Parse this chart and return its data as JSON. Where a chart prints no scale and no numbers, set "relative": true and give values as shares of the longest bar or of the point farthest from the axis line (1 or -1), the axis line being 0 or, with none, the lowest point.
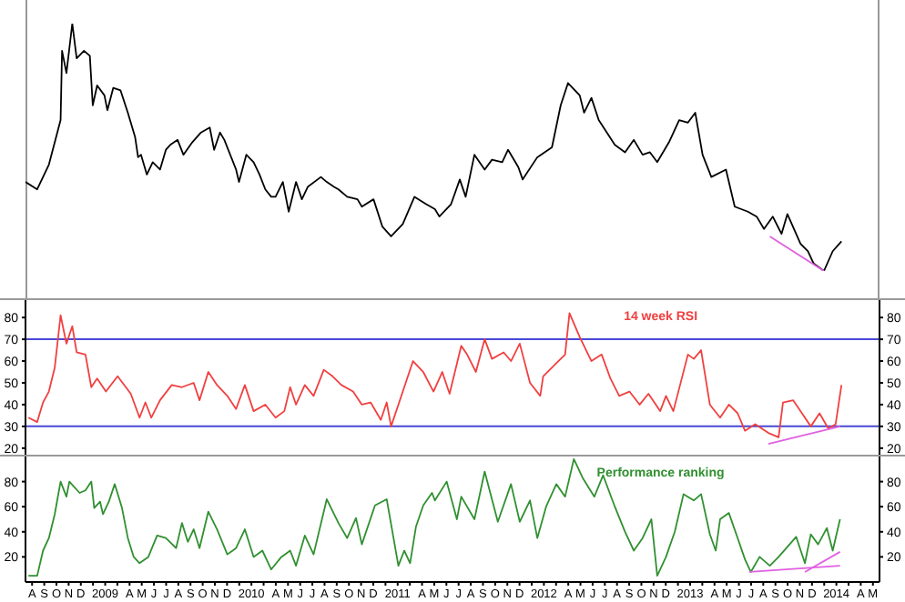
{
  "chart_data": [
    {
      "type": "line",
      "relative": true,
      "tick_labels": false,
      "xlim": [
        2008.58,
        2014.42
      ],
      "series": [
        {
          "color": "#000000",
          "x": [
            2008.58,
            2008.66,
            2008.74,
            2008.82,
            2008.83,
            2008.86,
            2008.9,
            2008.93,
            2008.98,
            2009.02,
            2009.04,
            2009.07,
            2009.12,
            2009.14,
            2009.18,
            2009.23,
            2009.28,
            2009.33,
            2009.35,
            2009.37,
            2009.41,
            2009.45,
            2009.5,
            2009.54,
            2009.57,
            2009.62,
            2009.66,
            2009.72,
            2009.78,
            2009.84,
            2009.87,
            2009.91,
            2009.94,
            2010.02,
            2010.04,
            2010.09,
            2010.14,
            2010.18,
            2010.22,
            2010.26,
            2010.29,
            2010.34,
            2010.38,
            2010.43,
            2010.47,
            2010.51,
            2010.6,
            2010.64,
            2010.69,
            2010.72,
            2010.78,
            2010.85,
            2010.88,
            2010.96,
            2011.02,
            2011.08,
            2011.16,
            2011.24,
            2011.32,
            2011.38,
            2011.41,
            2011.49,
            2011.55,
            2011.59,
            2011.65,
            2011.72,
            2011.77,
            2011.84,
            2011.88,
            2011.95,
            2011.98,
            2012.08,
            2012.18,
            2012.24,
            2012.29,
            2012.37,
            2012.4,
            2012.45,
            2012.5,
            2012.61,
            2012.68,
            2012.74,
            2012.8,
            2012.85,
            2012.9,
            2012.98,
            2013.05,
            2013.11,
            2013.16,
            2013.21,
            2013.27,
            2013.37,
            2013.43,
            2013.52,
            2013.58,
            2013.63,
            2013.69,
            2013.75,
            2013.79,
            2013.88,
            2013.93,
            2013.97,
            2014.04,
            2014.1,
            2014.16
          ],
          "values": [
            0.36,
            0.33,
            0.43,
            0.61,
            0.89,
            0.8,
            1,
            0.86,
            0.89,
            0.87,
            0.67,
            0.75,
            0.71,
            0.65,
            0.74,
            0.73,
            0.64,
            0.54,
            0.46,
            0.47,
            0.39,
            0.44,
            0.41,
            0.49,
            0.51,
            0.53,
            0.47,
            0.52,
            0.56,
            0.58,
            0.49,
            0.56,
            0.53,
            0.41,
            0.36,
            0.47,
            0.44,
            0.39,
            0.33,
            0.3,
            0.3,
            0.36,
            0.24,
            0.36,
            0.29,
            0.34,
            0.38,
            0.36,
            0.34,
            0.33,
            0.3,
            0.29,
            0.26,
            0.29,
            0.18,
            0.14,
            0.19,
            0.3,
            0.27,
            0.25,
            0.22,
            0.27,
            0.37,
            0.3,
            0.47,
            0.41,
            0.45,
            0.44,
            0.49,
            0.42,
            0.37,
            0.46,
            0.5,
            0.67,
            0.76,
            0.71,
            0.64,
            0.7,
            0.61,
            0.51,
            0.48,
            0.53,
            0.47,
            0.48,
            0.44,
            0.52,
            0.61,
            0.6,
            0.64,
            0.47,
            0.38,
            0.41,
            0.26,
            0.24,
            0.22,
            0.17,
            0.22,
            0.15,
            0.23,
            0.11,
            0.08,
            0.03,
            0,
            0.08,
            0.12
          ]
        },
        {
          "type": "line",
          "color": "#e060e0",
          "x": [
            2013.67,
            2014.04
          ],
          "values": [
            0.14,
            0
          ]
        }
      ]
    },
    {
      "type": "line",
      "tick_labels": "y",
      "xlim": [
        2008.58,
        2014.42
      ],
      "ylim": [
        17,
        88
      ],
      "yticks": [
        20,
        30,
        40,
        50,
        60,
        70,
        80
      ],
      "y2lim": [
        17,
        88
      ],
      "y2ticks": [
        20,
        30,
        40,
        50,
        60,
        70,
        80
      ],
      "annotations": [
        "14 week RSI"
      ],
      "ref_lines": [
        {
          "axis": "y",
          "value": 70,
          "color": "#4848d8"
        },
        {
          "axis": "y",
          "value": 30,
          "color": "#4848d8"
        }
      ],
      "series": [
        {
          "color": "#f04040",
          "x": [
            2008.6,
            2008.66,
            2008.7,
            2008.74,
            2008.78,
            2008.82,
            2008.86,
            2008.9,
            2008.93,
            2008.99,
            2009.03,
            2009.07,
            2009.13,
            2009.21,
            2009.3,
            2009.36,
            2009.4,
            2009.44,
            2009.5,
            2009.58,
            2009.65,
            2009.73,
            2009.77,
            2009.83,
            2009.89,
            2009.96,
            2010.02,
            2010.08,
            2010.14,
            2010.22,
            2010.29,
            2010.35,
            2010.39,
            2010.43,
            2010.49,
            2010.55,
            2010.62,
            2010.68,
            2010.74,
            2010.82,
            2010.88,
            2010.94,
            2011.01,
            2011.05,
            2011.08,
            2011.13,
            2011.23,
            2011.3,
            2011.37,
            2011.43,
            2011.48,
            2011.56,
            2011.6,
            2011.66,
            2011.72,
            2011.77,
            2011.85,
            2011.9,
            2011.96,
            2012.03,
            2012.1,
            2012.12,
            2012.21,
            2012.27,
            2012.3,
            2012.37,
            2012.45,
            2012.52,
            2012.58,
            2012.64,
            2012.71,
            2012.78,
            2012.84,
            2012.92,
            2012.96,
            2013.01,
            2013.11,
            2013.15,
            2013.2,
            2013.26,
            2013.33,
            2013.39,
            2013.45,
            2013.5,
            2013.57,
            2013.66,
            2013.73,
            2013.76,
            2013.83,
            2013.89,
            2013.95,
            2014.01,
            2014.07,
            2014.12,
            2014.16
          ],
          "values": [
            34,
            32,
            41,
            46,
            57,
            81,
            68,
            76,
            64,
            63,
            48,
            52,
            46,
            53,
            45,
            34,
            41,
            34,
            42,
            49,
            48,
            50,
            42,
            55,
            49,
            44,
            38,
            49,
            37,
            40,
            34,
            37,
            48,
            40,
            49,
            44,
            56,
            53,
            49,
            46,
            40,
            41,
            33,
            41,
            30,
            40,
            60,
            55,
            46,
            55,
            45,
            67,
            63,
            55,
            70,
            61,
            64,
            60,
            68,
            50,
            44,
            53,
            59,
            63,
            82,
            71,
            60,
            63,
            52,
            44,
            46,
            40,
            45,
            37,
            44,
            37,
            63,
            61,
            65,
            40,
            34,
            40,
            36,
            28,
            31,
            27,
            25,
            41,
            42,
            36,
            30,
            36,
            29,
            31,
            49
          ]
        },
        {
          "type": "line",
          "color": "#e060e0",
          "x": [
            2013.66,
            2014.15
          ],
          "values": [
            22,
            30
          ]
        }
      ]
    },
    {
      "type": "line",
      "xlim": [
        2008.58,
        2014.42
      ],
      "ylim": [
        0,
        100
      ],
      "yticks": [
        20,
        40,
        60,
        80
      ],
      "y2lim": [
        0,
        100
      ],
      "y2ticks": [
        20,
        40,
        60,
        80
      ],
      "annotations": [
        "Performance ranking"
      ],
      "xticks": [
        {
          "value": 2008.625,
          "label": "A"
        },
        {
          "value": 2008.7083,
          "label": "S"
        },
        {
          "value": 2008.7917,
          "label": "O"
        },
        {
          "value": 2008.875,
          "label": "N"
        },
        {
          "value": 2008.9583,
          "label": "D"
        },
        {
          "value": 2009.0417,
          "label": null
        },
        {
          "value": 2009.125,
          "label": "2009"
        },
        {
          "value": 2009.2083,
          "label": null
        },
        {
          "value": 2009.2917,
          "label": "A"
        },
        {
          "value": 2009.375,
          "label": "M"
        },
        {
          "value": 2009.4583,
          "label": "J"
        },
        {
          "value": 2009.5417,
          "label": "J"
        },
        {
          "value": 2009.625,
          "label": "A"
        },
        {
          "value": 2009.7083,
          "label": "S"
        },
        {
          "value": 2009.7917,
          "label": "O"
        },
        {
          "value": 2009.875,
          "label": "N"
        },
        {
          "value": 2009.9583,
          "label": "D"
        },
        {
          "value": 2010.0417,
          "label": null
        },
        {
          "value": 2010.125,
          "label": "2010"
        },
        {
          "value": 2010.2083,
          "label": null
        },
        {
          "value": 2010.2917,
          "label": "A"
        },
        {
          "value": 2010.375,
          "label": "M"
        },
        {
          "value": 2010.4583,
          "label": "J"
        },
        {
          "value": 2010.5417,
          "label": "J"
        },
        {
          "value": 2010.625,
          "label": "A"
        },
        {
          "value": 2010.7083,
          "label": "S"
        },
        {
          "value": 2010.7917,
          "label": "O"
        },
        {
          "value": 2010.875,
          "label": "N"
        },
        {
          "value": 2010.9583,
          "label": "D"
        },
        {
          "value": 2011.0417,
          "label": null
        },
        {
          "value": 2011.125,
          "label": "2011"
        },
        {
          "value": 2011.2083,
          "label": null
        },
        {
          "value": 2011.2917,
          "label": "A"
        },
        {
          "value": 2011.375,
          "label": "M"
        },
        {
          "value": 2011.4583,
          "label": "J"
        },
        {
          "value": 2011.5417,
          "label": "J"
        },
        {
          "value": 2011.625,
          "label": "A"
        },
        {
          "value": 2011.7083,
          "label": "S"
        },
        {
          "value": 2011.7917,
          "label": "O"
        },
        {
          "value": 2011.875,
          "label": "N"
        },
        {
          "value": 2011.9583,
          "label": "D"
        },
        {
          "value": 2012.0417,
          "label": null
        },
        {
          "value": 2012.125,
          "label": "2012"
        },
        {
          "value": 2012.2083,
          "label": null
        },
        {
          "value": 2012.2917,
          "label": "A"
        },
        {
          "value": 2012.375,
          "label": "M"
        },
        {
          "value": 2012.4583,
          "label": "J"
        },
        {
          "value": 2012.5417,
          "label": "J"
        },
        {
          "value": 2012.625,
          "label": "A"
        },
        {
          "value": 2012.7083,
          "label": "S"
        },
        {
          "value": 2012.7917,
          "label": "O"
        },
        {
          "value": 2012.875,
          "label": "N"
        },
        {
          "value": 2012.9583,
          "label": "D"
        },
        {
          "value": 2013.0417,
          "label": null
        },
        {
          "value": 2013.125,
          "label": "2013"
        },
        {
          "value": 2013.2083,
          "label": null
        },
        {
          "value": 2013.2917,
          "label": "A"
        },
        {
          "value": 2013.375,
          "label": "M"
        },
        {
          "value": 2013.4583,
          "label": "J"
        },
        {
          "value": 2013.5417,
          "label": "J"
        },
        {
          "value": 2013.625,
          "label": "A"
        },
        {
          "value": 2013.7083,
          "label": "S"
        },
        {
          "value": 2013.7917,
          "label": "O"
        },
        {
          "value": 2013.875,
          "label": "N"
        },
        {
          "value": 2013.9583,
          "label": "D"
        },
        {
          "value": 2014.0417,
          "label": null
        },
        {
          "value": 2014.125,
          "label": "2014"
        },
        {
          "value": 2014.2083,
          "label": null
        },
        {
          "value": 2014.2917,
          "label": "A"
        },
        {
          "value": 2014.375,
          "label": "M"
        }
      ],
      "series": [
        {
          "color": "#309030",
          "x": [
            2008.6,
            2008.66,
            2008.7,
            2008.74,
            2008.78,
            2008.82,
            2008.86,
            2008.88,
            2008.95,
            2008.99,
            2009.03,
            2009.05,
            2009.09,
            2009.11,
            2009.15,
            2009.19,
            2009.24,
            2009.28,
            2009.32,
            2009.36,
            2009.42,
            2009.48,
            2009.54,
            2009.61,
            2009.65,
            2009.69,
            2009.73,
            2009.77,
            2009.83,
            2009.89,
            2009.96,
            2010.02,
            2010.08,
            2010.14,
            2010.2,
            2010.26,
            2010.33,
            2010.39,
            2010.43,
            2010.49,
            2010.55,
            2010.64,
            2010.72,
            2010.78,
            2010.84,
            2010.88,
            2010.97,
            2011.05,
            2011.13,
            2011.17,
            2011.21,
            2011.25,
            2011.3,
            2011.36,
            2011.38,
            2011.46,
            2011.53,
            2011.56,
            2011.65,
            2011.72,
            2011.81,
            2011.9,
            2011.96,
            2012.03,
            2012.08,
            2012.14,
            2012.21,
            2012.27,
            2012.33,
            2012.39,
            2012.47,
            2012.53,
            2012.61,
            2012.68,
            2012.74,
            2012.8,
            2012.86,
            2012.9,
            2012.96,
            2013.02,
            2013.08,
            2013.15,
            2013.2,
            2013.26,
            2013.3,
            2013.33,
            2013.39,
            2013.45,
            2013.5,
            2013.54,
            2013.6,
            2013.67,
            2013.73,
            2013.79,
            2013.85,
            2013.91,
            2013.95,
            2014.0,
            2014.06,
            2014.1,
            2014.15
          ],
          "values": [
            5,
            5,
            25,
            35,
            54,
            80,
            68,
            80,
            71,
            73,
            80,
            59,
            64,
            54,
            64,
            78,
            59,
            35,
            20,
            15,
            20,
            37,
            35,
            27,
            47,
            32,
            42,
            27,
            56,
            42,
            22,
            27,
            42,
            20,
            25,
            10,
            20,
            25,
            13,
            37,
            22,
            66,
            47,
            35,
            51,
            30,
            61,
            66,
            13,
            25,
            15,
            44,
            61,
            71,
            65,
            80,
            50,
            68,
            50,
            88,
            48,
            78,
            48,
            65,
            35,
            60,
            78,
            68,
            98,
            83,
            68,
            85,
            60,
            40,
            25,
            35,
            50,
            5,
            20,
            40,
            70,
            65,
            70,
            38,
            25,
            50,
            55,
            35,
            18,
            8,
            20,
            13,
            20,
            28,
            36,
            15,
            38,
            30,
            43,
            25,
            50
          ]
        },
        {
          "type": "line",
          "color": "#e060e0",
          "x": [
            2013.53,
            2014.15
          ],
          "values": [
            8,
            13
          ]
        },
        {
          "type": "line",
          "color": "#e060e0",
          "x": [
            2013.91,
            2014.15
          ],
          "values": [
            8,
            24
          ]
        }
      ]
    }
  ]
}
